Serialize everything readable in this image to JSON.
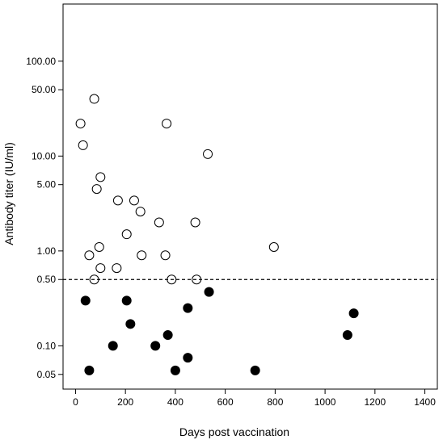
{
  "chart_data": {
    "type": "scatter",
    "title": "",
    "xlabel": "Days post vaccination",
    "ylabel": "Antibody titer (IU/ml)",
    "x_scale": "linear",
    "y_scale": "log",
    "xlim": [
      -50,
      1450
    ],
    "ylim": [
      0.035,
      400
    ],
    "x_ticks": [
      0,
      200,
      400,
      600,
      800,
      1000,
      1200,
      1400
    ],
    "x_tick_labels": [
      "0",
      "200",
      "400",
      "600",
      "800",
      "1000",
      "1200",
      "1400"
    ],
    "y_ticks": [
      0.05,
      0.1,
      0.5,
      1,
      5,
      10,
      50,
      100
    ],
    "y_tick_labels": [
      "0.05",
      "0.10",
      "0.50",
      "1.00",
      "5.00",
      "10.00",
      "50.00",
      "100.00"
    ],
    "reference_line": {
      "y": 0.5,
      "style": "dashed"
    },
    "grid": false,
    "legend": "none",
    "series": [
      {
        "marker": "open-circle",
        "color": "#000000",
        "points": [
          {
            "x": 20,
            "y": 22
          },
          {
            "x": 30,
            "y": 13
          },
          {
            "x": 75,
            "y": 40
          },
          {
            "x": 85,
            "y": 4.5
          },
          {
            "x": 100,
            "y": 6
          },
          {
            "x": 55,
            "y": 0.9
          },
          {
            "x": 95,
            "y": 1.1
          },
          {
            "x": 100,
            "y": 0.66
          },
          {
            "x": 75,
            "y": 0.5
          },
          {
            "x": 170,
            "y": 3.4
          },
          {
            "x": 165,
            "y": 0.66
          },
          {
            "x": 205,
            "y": 1.5
          },
          {
            "x": 235,
            "y": 3.4
          },
          {
            "x": 260,
            "y": 2.6
          },
          {
            "x": 265,
            "y": 0.9
          },
          {
            "x": 335,
            "y": 2
          },
          {
            "x": 360,
            "y": 0.9
          },
          {
            "x": 365,
            "y": 22
          },
          {
            "x": 385,
            "y": 0.5
          },
          {
            "x": 480,
            "y": 2
          },
          {
            "x": 485,
            "y": 0.5
          },
          {
            "x": 530,
            "y": 10.5
          },
          {
            "x": 795,
            "y": 1.1
          }
        ]
      },
      {
        "marker": "filled-circle",
        "color": "#000000",
        "points": [
          {
            "x": 40,
            "y": 0.3
          },
          {
            "x": 55,
            "y": 0.055
          },
          {
            "x": 150,
            "y": 0.1
          },
          {
            "x": 205,
            "y": 0.3
          },
          {
            "x": 220,
            "y": 0.17
          },
          {
            "x": 320,
            "y": 0.1
          },
          {
            "x": 370,
            "y": 0.13
          },
          {
            "x": 400,
            "y": 0.055
          },
          {
            "x": 450,
            "y": 0.075
          },
          {
            "x": 450,
            "y": 0.25
          },
          {
            "x": 535,
            "y": 0.37
          },
          {
            "x": 720,
            "y": 0.055
          },
          {
            "x": 1090,
            "y": 0.13
          },
          {
            "x": 1115,
            "y": 0.22
          }
        ]
      }
    ]
  }
}
